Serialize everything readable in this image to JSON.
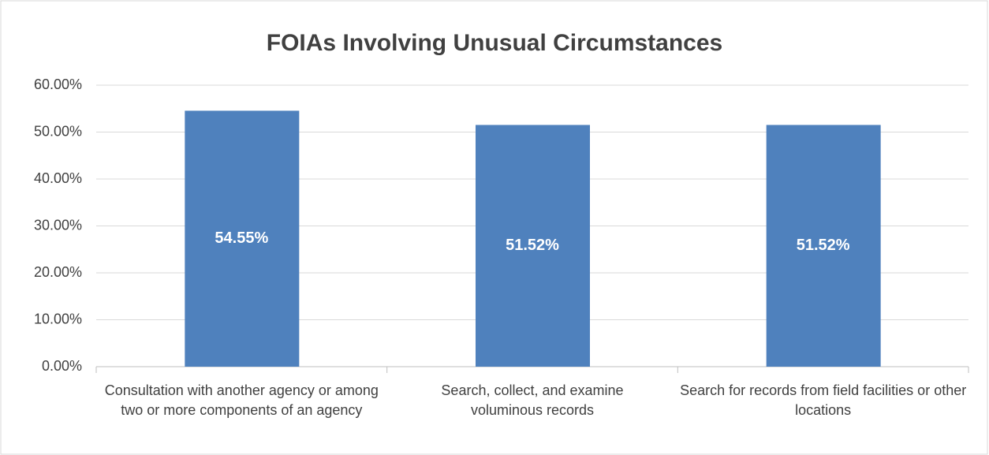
{
  "chart_data": {
    "type": "bar",
    "title": "FOIAs Involving Unusual Circumstances",
    "categories": [
      "Consultation with another agency or among two or more components of an agency",
      "Search, collect, and examine voluminous records",
      "Search for records from field facilities or other locations"
    ],
    "values": [
      54.55,
      51.52,
      51.52
    ],
    "value_labels": [
      "54.55%",
      "51.52%",
      "51.52%"
    ],
    "color": "#4f81bd",
    "ylim": [
      0,
      60
    ],
    "yticks": [
      {
        "value": 0,
        "label": "0.00%"
      },
      {
        "value": 10,
        "label": "10.00%"
      },
      {
        "value": 20,
        "label": "20.00%"
      },
      {
        "value": 30,
        "label": "30.00%"
      },
      {
        "value": 40,
        "label": "40.00%"
      },
      {
        "value": 50,
        "label": "50.00%"
      },
      {
        "value": 60,
        "label": "60.00%"
      }
    ],
    "grid": true
  }
}
